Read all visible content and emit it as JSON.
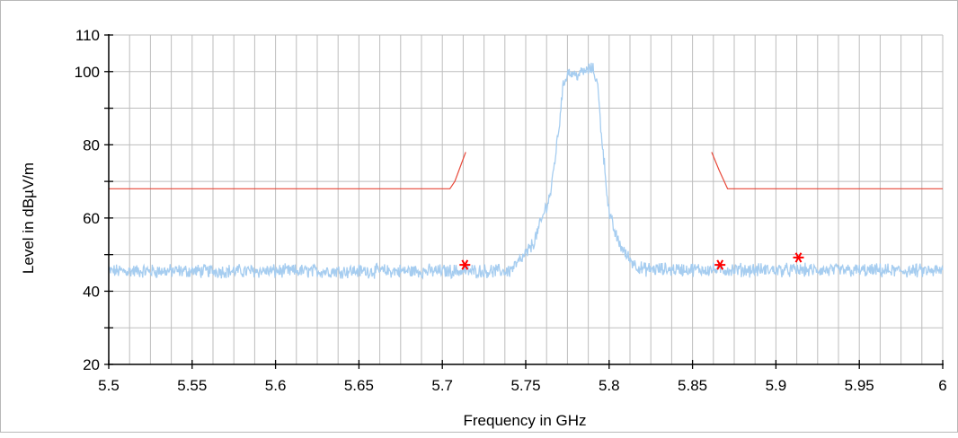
{
  "chart_data": {
    "type": "line",
    "title": "",
    "xlabel": "Frequency in GHz",
    "ylabel": "Level in dBµV/m",
    "xlim": [
      5.5,
      6.0
    ],
    "ylim": [
      20,
      110
    ],
    "x_ticks": [
      "5.5",
      "5.55",
      "5.6",
      "5.65",
      "5.7",
      "5.75",
      "5.8",
      "5.85",
      "5.9",
      "5.95",
      "6"
    ],
    "y_ticks": [
      "20",
      "40",
      "60",
      "80",
      "100",
      "110"
    ],
    "grid": true,
    "colors": {
      "trace": "#a6cdf0",
      "limit": "#e8493a",
      "markers": "#ff0000",
      "grid": "#bdbdbd"
    },
    "series": [
      {
        "role": "measured-trace",
        "noise_floor_dB": 45.5,
        "x": [
          5.5,
          5.74,
          5.745,
          5.75,
          5.755,
          5.76,
          5.765,
          5.77,
          5.772,
          5.775,
          5.78,
          5.785,
          5.79,
          5.793,
          5.795,
          5.8,
          5.805,
          5.81,
          5.815,
          5.82,
          6.0
        ],
        "y": [
          45.5,
          45.5,
          47.5,
          50,
          53.5,
          60,
          67,
          85,
          95,
          100,
          99,
          100,
          101,
          97,
          85,
          61,
          54,
          50,
          47.5,
          46,
          45.5
        ]
      },
      {
        "role": "limit-line",
        "x": [
          5.5,
          5.7045,
          5.7075,
          5.714,
          5.8615,
          5.866,
          5.871,
          6.0
        ],
        "y": [
          68,
          68,
          70,
          78,
          78,
          73,
          68,
          68
        ]
      }
    ],
    "markers": [
      {
        "x": 5.7135,
        "y": 47.2
      },
      {
        "x": 5.8665,
        "y": 47.2
      },
      {
        "x": 5.9135,
        "y": 49.2
      }
    ]
  }
}
